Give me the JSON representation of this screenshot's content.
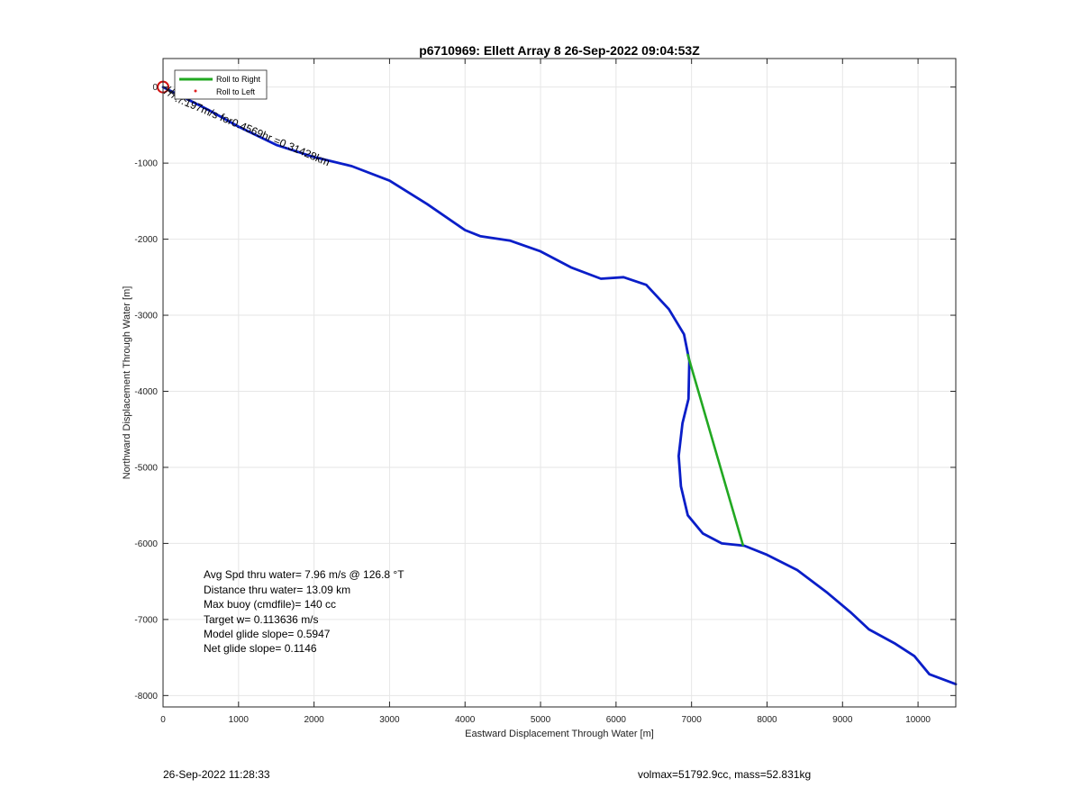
{
  "chart_data": {
    "type": "line",
    "title": "p6710969: Ellett Array 8 26-Sep-2022 09:04:53Z",
    "xlabel": "Eastward Displacement Through Water [m]",
    "ylabel": "Northward Displacement Through Water [m]",
    "xlim": [
      0,
      10500
    ],
    "ylim": [
      -8150,
      375
    ],
    "xticks": [
      0,
      1000,
      2000,
      3000,
      4000,
      5000,
      6000,
      7000,
      8000,
      9000,
      10000
    ],
    "yticks": [
      0,
      -1000,
      -2000,
      -3000,
      -4000,
      -5000,
      -6000,
      -7000,
      -8000
    ],
    "grid": true,
    "legend_position": "top-left",
    "series": [
      {
        "name": "Roll to Right",
        "color": "#22a822",
        "points": [
          [
            6950,
            -3520
          ],
          [
            7680,
            -6020
          ]
        ]
      },
      {
        "name": "Roll to Left",
        "color": "#e02020",
        "points": []
      },
      {
        "color": "#0a1ec8",
        "points": [
          [
            0,
            0
          ],
          [
            300,
            -150
          ],
          [
            600,
            -300
          ],
          [
            1000,
            -520
          ],
          [
            1500,
            -760
          ],
          [
            2000,
            -920
          ],
          [
            2500,
            -1040
          ],
          [
            3000,
            -1230
          ],
          [
            3500,
            -1540
          ],
          [
            4000,
            -1880
          ],
          [
            4200,
            -1960
          ],
          [
            4600,
            -2020
          ],
          [
            5000,
            -2160
          ],
          [
            5400,
            -2370
          ],
          [
            5800,
            -2520
          ],
          [
            6100,
            -2500
          ],
          [
            6400,
            -2600
          ],
          [
            6700,
            -2920
          ],
          [
            6900,
            -3250
          ],
          [
            6970,
            -3600
          ],
          [
            6960,
            -4100
          ],
          [
            6880,
            -4420
          ],
          [
            6830,
            -4850
          ],
          [
            6860,
            -5250
          ],
          [
            6950,
            -5630
          ],
          [
            7150,
            -5870
          ],
          [
            7400,
            -6000
          ],
          [
            7700,
            -6030
          ],
          [
            8000,
            -6150
          ],
          [
            8400,
            -6350
          ],
          [
            8800,
            -6650
          ],
          [
            9100,
            -6900
          ],
          [
            9350,
            -7130
          ],
          [
            9700,
            -7320
          ],
          [
            9950,
            -7480
          ],
          [
            10150,
            -7720
          ],
          [
            10500,
            -7850
          ]
        ]
      }
    ],
    "annotations": [
      "Avg Spd thru water=  7.96 m/s @ 126.8 °T",
      "Distance thru water= 13.09 km",
      "Max buoy (cmdfile)= 140 cc",
      "Target w= 0.113636 m/s",
      "Model glide slope= 0.5947",
      "Net glide slope= 0.1146"
    ],
    "rotated_label": "…197m/s for0.4569hr =0.31428km"
  },
  "footer": {
    "timestamp": "26-Sep-2022 11:28:33",
    "summary": "volmax=51792.9cc, mass=52.831kg"
  }
}
